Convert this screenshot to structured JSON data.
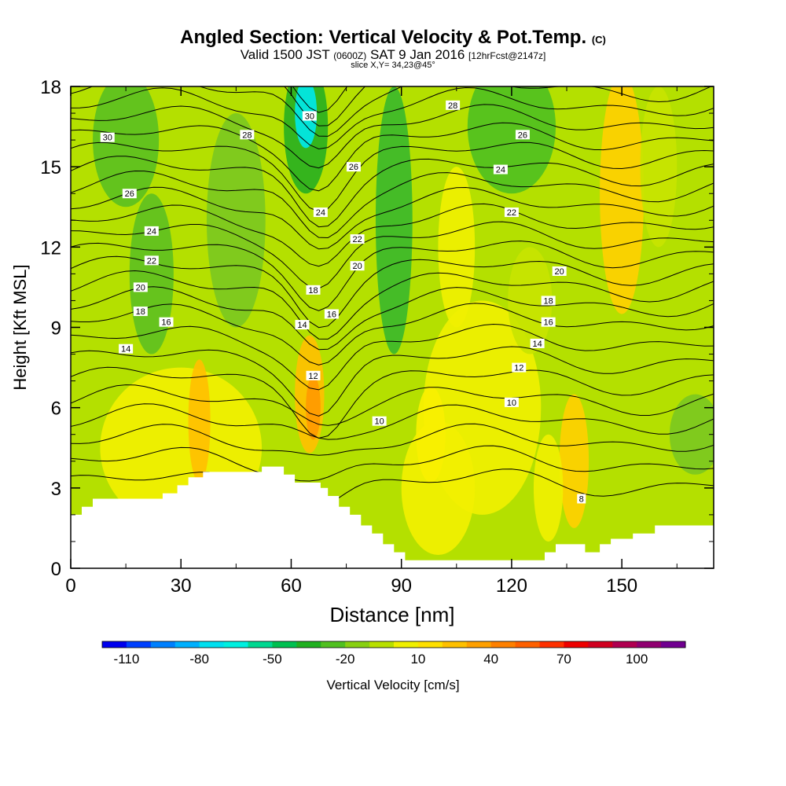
{
  "title": {
    "main": "Angled Section: Vertical Velocity & Pot.Temp.",
    "copyright": "(C)",
    "valid_prefix": "Valid 1500 JST",
    "valid_utc": "(0600Z)",
    "valid_date": "SAT 9 Jan 2016",
    "forecast": "[12hrFcst@2147z]",
    "slice": "slice X,Y= 34,23@45°"
  },
  "chart_data": {
    "type": "heatmap",
    "xlabel": "Distance [nm]",
    "ylabel": "Height [Kft MSL]",
    "xlim": [
      0,
      175
    ],
    "ylim": [
      0,
      18
    ],
    "x_ticks": [
      "0",
      "30",
      "60",
      "90",
      "120",
      "150"
    ],
    "y_ticks": [
      "0",
      "3",
      "6",
      "9",
      "12",
      "15",
      "18"
    ],
    "colorbar": {
      "label": "Vertical Velocity [cm/s]",
      "tick_labels": [
        "-110",
        "-80",
        "-50",
        "-20",
        "10",
        "40",
        "70",
        "100"
      ],
      "colors": [
        "#0000ee",
        "#0040ff",
        "#0080ff",
        "#00b0ff",
        "#00e0f0",
        "#00f0e0",
        "#00d890",
        "#00c050",
        "#20b020",
        "#50c020",
        "#88d010",
        "#b8e000",
        "#f0f000",
        "#ffe000",
        "#ffc000",
        "#ffa000",
        "#ff8000",
        "#ff6000",
        "#ff3000",
        "#ee0000",
        "#d00020",
        "#b00050",
        "#900070",
        "#700090"
      ]
    },
    "velocity_features": [
      {
        "kind": "strong updraft",
        "x": 65,
        "y": 6,
        "value_cm_s": 40
      },
      {
        "kind": "updraft",
        "x": 35,
        "y": 5.5,
        "value_cm_s": 25
      },
      {
        "kind": "updraft",
        "x": 137,
        "y": 4,
        "value_cm_s": 25
      },
      {
        "kind": "updraft",
        "x": 150,
        "y": 14,
        "value_cm_s": 25
      },
      {
        "kind": "strong downdraft",
        "x": 64,
        "y": 17,
        "value_cm_s": -55
      },
      {
        "kind": "downdraft",
        "x": 15,
        "y": 15,
        "value_cm_s": -20
      },
      {
        "kind": "downdraft",
        "x": 120,
        "y": 16.5,
        "value_cm_s": -20
      }
    ],
    "theta_contours": [
      {
        "level": 8,
        "label": "8",
        "x": 139,
        "y": 2.6
      },
      {
        "level": 10,
        "label": "10",
        "x": 84,
        "y": 5.5
      },
      {
        "level": 10,
        "label": "10",
        "x": 120,
        "y": 6.2
      },
      {
        "level": 12,
        "label": "12",
        "x": 66,
        "y": 7.2
      },
      {
        "level": 12,
        "label": "12",
        "x": 122,
        "y": 7.5
      },
      {
        "level": 14,
        "label": "14",
        "x": 15,
        "y": 8.2
      },
      {
        "level": 14,
        "label": "14",
        "x": 63,
        "y": 9.1
      },
      {
        "level": 14,
        "label": "14",
        "x": 127,
        "y": 8.4
      },
      {
        "level": 16,
        "label": "16",
        "x": 26,
        "y": 9.2
      },
      {
        "level": 16,
        "label": "16",
        "x": 71,
        "y": 9.5
      },
      {
        "level": 16,
        "label": "16",
        "x": 130,
        "y": 9.2
      },
      {
        "level": 18,
        "label": "18",
        "x": 19,
        "y": 9.6
      },
      {
        "level": 18,
        "label": "18",
        "x": 66,
        "y": 10.4
      },
      {
        "level": 18,
        "label": "18",
        "x": 130,
        "y": 10
      },
      {
        "level": 20,
        "label": "20",
        "x": 19,
        "y": 10.5
      },
      {
        "level": 20,
        "label": "20",
        "x": 78,
        "y": 11.3
      },
      {
        "level": 20,
        "label": "20",
        "x": 133,
        "y": 11.1
      },
      {
        "level": 22,
        "label": "22",
        "x": 22,
        "y": 11.5
      },
      {
        "level": 22,
        "label": "22",
        "x": 78,
        "y": 12.3
      },
      {
        "level": 22,
        "label": "22",
        "x": 120,
        "y": 13.3
      },
      {
        "level": 24,
        "label": "24",
        "x": 22,
        "y": 12.6
      },
      {
        "level": 24,
        "label": "24",
        "x": 68,
        "y": 13.3
      },
      {
        "level": 24,
        "label": "24",
        "x": 117,
        "y": 14.9
      },
      {
        "level": 26,
        "label": "26",
        "x": 16,
        "y": 14
      },
      {
        "level": 26,
        "label": "26",
        "x": 77,
        "y": 15
      },
      {
        "level": 26,
        "label": "26",
        "x": 123,
        "y": 16.2
      },
      {
        "level": 28,
        "label": "28",
        "x": 48,
        "y": 16.2
      },
      {
        "level": 28,
        "label": "28",
        "x": 104,
        "y": 17.3
      },
      {
        "level": 30,
        "label": "30",
        "x": 10,
        "y": 16.1
      },
      {
        "level": 30,
        "label": "30",
        "x": 65,
        "y": 16.9
      }
    ],
    "terrain": [
      [
        0,
        2
      ],
      [
        3,
        2
      ],
      [
        3,
        2.3
      ],
      [
        6,
        2.3
      ],
      [
        6,
        2.6
      ],
      [
        9,
        2.6
      ],
      [
        9,
        2.6
      ],
      [
        25,
        2.6
      ],
      [
        25,
        2.8
      ],
      [
        29,
        2.8
      ],
      [
        29,
        3.1
      ],
      [
        32,
        3.1
      ],
      [
        32,
        3.4
      ],
      [
        36,
        3.4
      ],
      [
        36,
        3.6
      ],
      [
        52,
        3.6
      ],
      [
        52,
        3.8
      ],
      [
        58,
        3.8
      ],
      [
        58,
        3.5
      ],
      [
        61,
        3.5
      ],
      [
        61,
        3.2
      ],
      [
        68,
        3.2
      ],
      [
        68,
        3.0
      ],
      [
        70,
        3.0
      ],
      [
        70,
        2.7
      ],
      [
        73,
        2.7
      ],
      [
        73,
        2.3
      ],
      [
        76,
        2.3
      ],
      [
        76,
        2.0
      ],
      [
        79,
        2.0
      ],
      [
        79,
        1.6
      ],
      [
        82,
        1.6
      ],
      [
        82,
        1.3
      ],
      [
        85,
        1.3
      ],
      [
        85,
        0.9
      ],
      [
        88,
        0.9
      ],
      [
        88,
        0.6
      ],
      [
        91,
        0.6
      ],
      [
        91,
        0.3
      ],
      [
        129,
        0.3
      ],
      [
        129,
        0.6
      ],
      [
        132,
        0.6
      ],
      [
        132,
        0.9
      ],
      [
        140,
        0.9
      ],
      [
        140,
        0.6
      ],
      [
        144,
        0.6
      ],
      [
        144,
        0.9
      ],
      [
        147,
        0.9
      ],
      [
        147,
        1.1
      ],
      [
        153,
        1.1
      ],
      [
        153,
        1.3
      ],
      [
        159,
        1.3
      ],
      [
        159,
        1.6
      ],
      [
        175,
        1.6
      ]
    ]
  }
}
